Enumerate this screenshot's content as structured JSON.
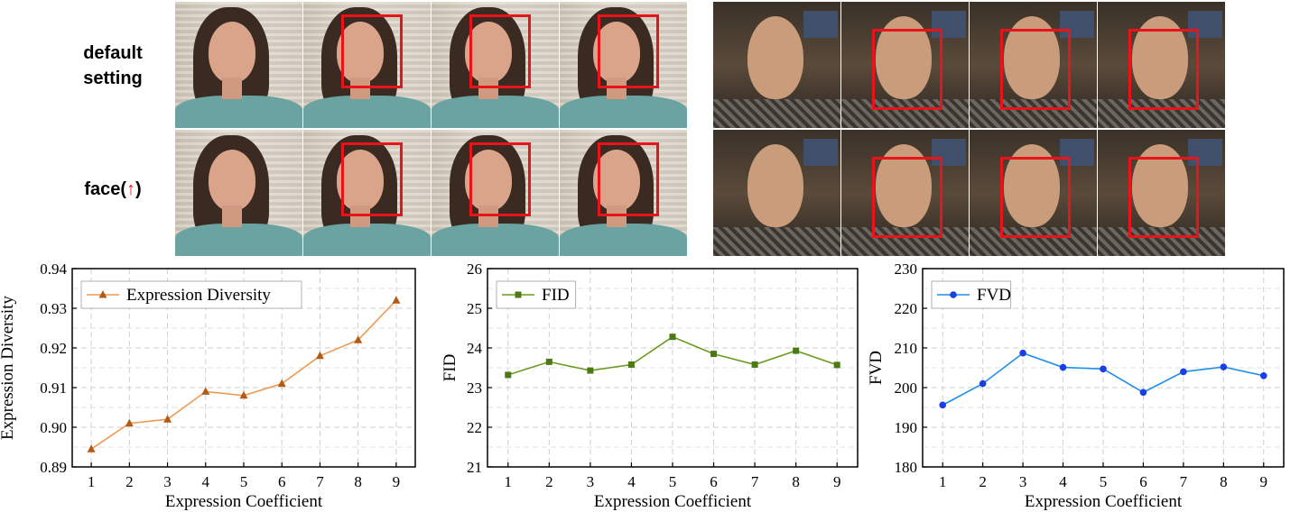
{
  "rows": {
    "row1": "default",
    "row1b": "setting",
    "row2_prefix": "face(",
    "row2_arrow": "↑",
    "row2_suffix": ")"
  },
  "colors": {
    "highlight_box": "#e8141a"
  },
  "chart_data": [
    {
      "type": "line",
      "x": [
        1,
        2,
        3,
        4,
        5,
        6,
        7,
        8,
        9
      ],
      "series": [
        {
          "name": "Expression Diversity",
          "values": [
            0.8945,
            0.901,
            0.902,
            0.909,
            0.908,
            0.911,
            0.918,
            0.922,
            0.932
          ],
          "color": "#ee9a55",
          "marker": "triangle"
        }
      ],
      "xlabel": "Expression Coefficient",
      "ylabel": "Expression Diversity",
      "ylim": [
        0.89,
        0.94
      ],
      "yticks": [
        "0.89",
        "0.90",
        "0.91",
        "0.92",
        "0.93",
        "0.94"
      ],
      "xticks": [
        "1",
        "2",
        "3",
        "4",
        "5",
        "6",
        "7",
        "8",
        "9"
      ],
      "grid": true,
      "legend": "top-left"
    },
    {
      "type": "line",
      "x": [
        1,
        2,
        3,
        4,
        5,
        6,
        7,
        8,
        9
      ],
      "series": [
        {
          "name": "FID",
          "values": [
            23.32,
            23.65,
            23.43,
            23.58,
            24.28,
            23.85,
            23.58,
            23.93,
            23.57
          ],
          "color": "#6a9a1f",
          "marker": "square"
        }
      ],
      "xlabel": "Expression Coefficient",
      "ylabel": "FID",
      "ylim": [
        21,
        26
      ],
      "yticks": [
        "21",
        "22",
        "23",
        "24",
        "25",
        "26"
      ],
      "xticks": [
        "1",
        "2",
        "3",
        "4",
        "5",
        "6",
        "7",
        "8",
        "9"
      ],
      "grid": true,
      "legend": "top-left"
    },
    {
      "type": "line",
      "x": [
        1,
        2,
        3,
        4,
        5,
        6,
        7,
        8,
        9
      ],
      "series": [
        {
          "name": "FVD",
          "values": [
            195.6,
            201.0,
            208.7,
            205.1,
            204.7,
            198.8,
            204.0,
            205.2,
            203.0
          ],
          "color": "#1f8fe8",
          "marker": "circle"
        }
      ],
      "xlabel": "Expression Coefficient",
      "ylabel": "FVD",
      "ylim": [
        180,
        230
      ],
      "yticks": [
        "180",
        "190",
        "200",
        "210",
        "220",
        "230"
      ],
      "xticks": [
        "1",
        "2",
        "3",
        "4",
        "5",
        "6",
        "7",
        "8",
        "9"
      ],
      "grid": true,
      "legend": "top-left"
    }
  ]
}
